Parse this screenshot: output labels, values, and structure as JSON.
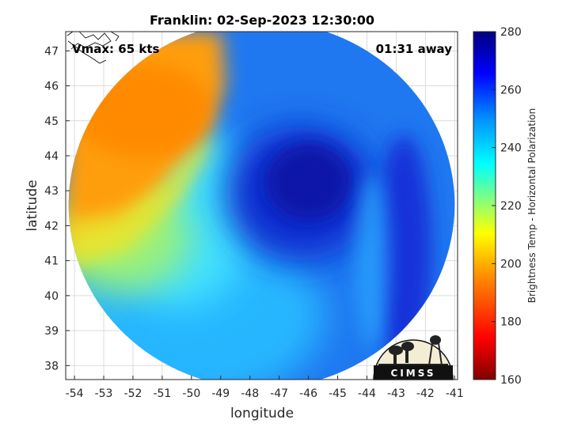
{
  "chart_data": {
    "type": "heatmap",
    "title": "Franklin: 02-Sep-2023 12:30:00",
    "annotations": {
      "left": "Vmax: 65 kts",
      "right": "01:31 away"
    },
    "xlabel": "longitude",
    "ylabel": "latitude",
    "xlim": [
      -54.3,
      -40.9
    ],
    "ylim": [
      37.6,
      47.55
    ],
    "xticks": [
      -54,
      -53,
      -52,
      -51,
      -50,
      -49,
      -48,
      -47,
      -46,
      -45,
      -44,
      -43,
      -42,
      -41
    ],
    "yticks": [
      38,
      39,
      40,
      41,
      42,
      43,
      44,
      45,
      46,
      47
    ],
    "grid": true,
    "colorbar": {
      "label": "Brightness Temp - Horizontal Polarization",
      "range": [
        160,
        280
      ],
      "ticks": [
        160,
        180,
        200,
        220,
        240,
        260,
        280
      ],
      "colormap": [
        "#800000",
        "#ff0000",
        "#ff8000",
        "#ffff00",
        "#80ff80",
        "#00ffff",
        "#0080ff",
        "#0000ff",
        "#000080"
      ]
    },
    "swath": {
      "center": [
        -47.6,
        42.6
      ],
      "radius_deg": [
        6.6,
        5.25
      ]
    },
    "field": {
      "background": 245,
      "features": [
        {
          "kind": "warm-region",
          "description": "cold-sea",
          "lon": -52.0,
          "lat": 44.5,
          "value": 190
        },
        {
          "kind": "core",
          "lon": -46.8,
          "lat": 43.0,
          "value": 270
        },
        {
          "kind": "band",
          "lon": -43.5,
          "lat": 41.0,
          "value": 260
        }
      ]
    },
    "logo": "CIMSS"
  }
}
